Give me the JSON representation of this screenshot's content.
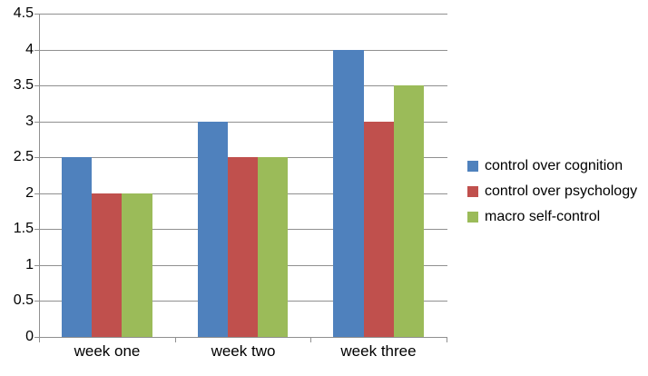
{
  "chart_data": {
    "type": "bar",
    "categories": [
      "week one",
      "week two",
      "week three"
    ],
    "series": [
      {
        "name": "control over cognition",
        "color": "#4F81BD",
        "values": [
          2.5,
          3.0,
          4.0
        ]
      },
      {
        "name": "control over psychology",
        "color": "#C0504D",
        "values": [
          2.0,
          2.5,
          3.0
        ]
      },
      {
        "name": "macro self-control",
        "color": "#9BBB59",
        "values": [
          2.0,
          2.5,
          3.5
        ]
      }
    ],
    "title": "",
    "xlabel": "",
    "ylabel": "",
    "ylim": [
      0,
      4.5
    ],
    "ytick_step": 0.5,
    "ytick_labels": [
      "0",
      "0.5",
      "1",
      "1.5",
      "2",
      "2.5",
      "3",
      "3.5",
      "4",
      "4.5"
    ],
    "grid": true,
    "legend_position": "right"
  },
  "colors": {
    "axis": "#909090",
    "gridline": "#909090",
    "text": "#000000",
    "background": "#FFFFFF"
  }
}
